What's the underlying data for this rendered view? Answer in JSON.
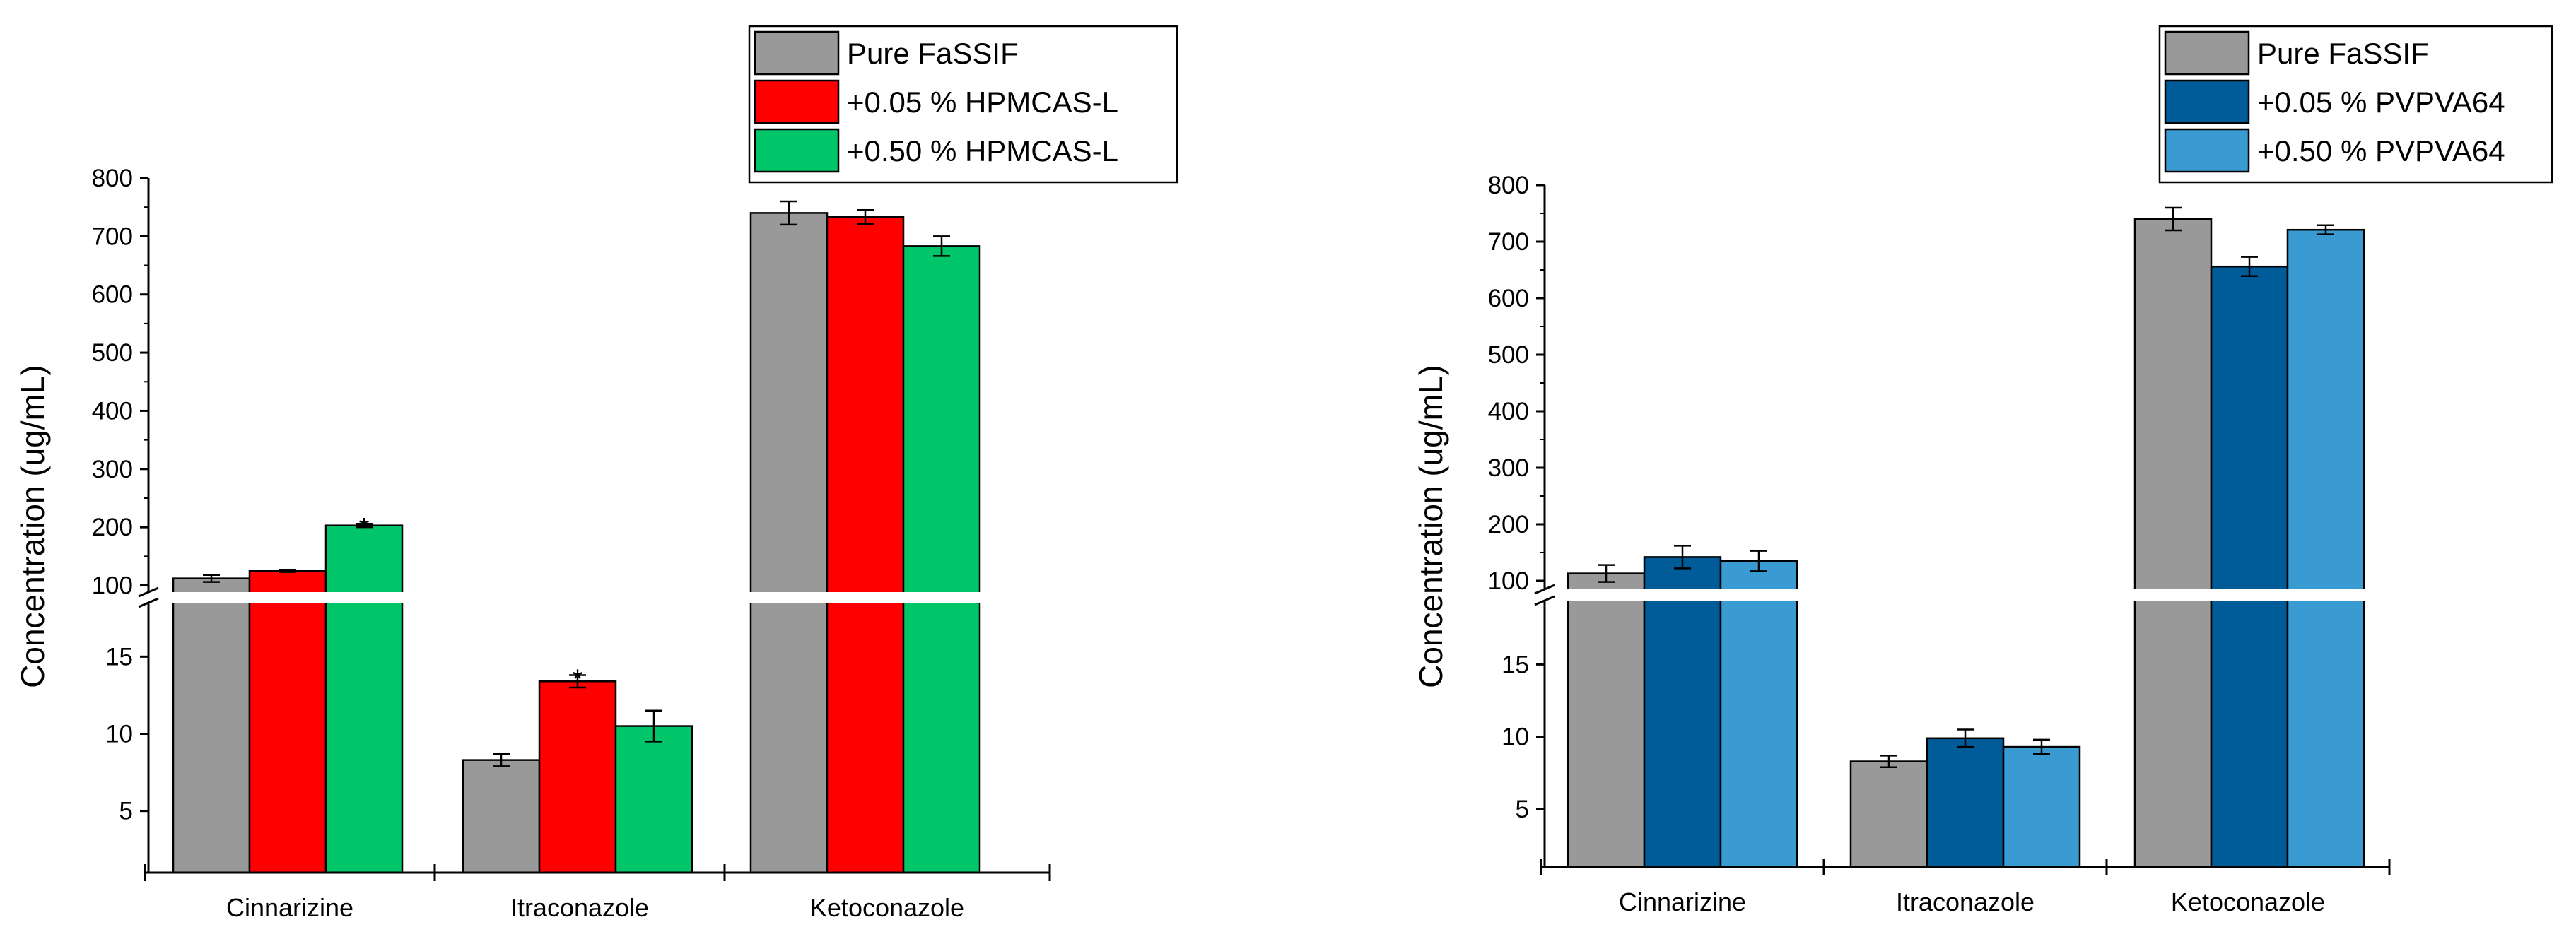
{
  "chart_data": [
    {
      "type": "bar",
      "id": "left",
      "ylabel": "Concentration (ug/mL)",
      "categories": [
        "Cinnarizine",
        "Itraconazole",
        "Ketoconazole"
      ],
      "axis_break": {
        "lower_range": [
          1,
          19
        ],
        "upper_range": [
          80,
          800
        ]
      },
      "lower_ticks": [
        "5",
        "10",
        "15"
      ],
      "upper_ticks": [
        "100",
        "200",
        "300",
        "400",
        "500",
        "600",
        "700",
        "800"
      ],
      "series": [
        {
          "name": "Pure FaSSIF",
          "color": "#999999",
          "values": [
            112,
            8.3,
            740
          ],
          "errors": [
            6,
            0.4,
            20
          ],
          "stars": [
            false,
            false,
            false
          ]
        },
        {
          "name": "+0.05 % HPMCAS-L",
          "color": "#ff0000",
          "values": [
            125,
            13.4,
            733
          ],
          "errors": [
            2,
            0.4,
            12
          ],
          "stars": [
            false,
            true,
            false
          ]
        },
        {
          "name": "+0.50 % HPMCAS-L",
          "color": "#00c569",
          "values": [
            203,
            10.5,
            683
          ],
          "errors": [
            3,
            1.0,
            17
          ],
          "stars": [
            true,
            false,
            false
          ]
        }
      ],
      "star_symbol": "*"
    },
    {
      "type": "bar",
      "id": "right",
      "ylabel": "Concentration (ug/mL)",
      "categories": [
        "Cinnarizine",
        "Itraconazole",
        "Ketoconazole"
      ],
      "axis_break": {
        "lower_range": [
          1,
          20
        ],
        "upper_range": [
          90,
          800
        ]
      },
      "lower_ticks": [
        "5",
        "10",
        "15"
      ],
      "upper_ticks": [
        "100",
        "200",
        "300",
        "400",
        "500",
        "600",
        "700",
        "800"
      ],
      "series": [
        {
          "name": "Pure FaSSIF",
          "color": "#999999",
          "values": [
            113,
            8.3,
            740
          ],
          "errors": [
            15,
            0.4,
            20
          ],
          "stars": [
            false,
            false,
            false
          ]
        },
        {
          "name": "+0.05 % PVPVA64",
          "color": "#005b99",
          "values": [
            142,
            9.9,
            656
          ],
          "errors": [
            20,
            0.6,
            17
          ],
          "stars": [
            false,
            false,
            false
          ]
        },
        {
          "name": "+0.50 % PVPVA64",
          "color": "#399bd2",
          "values": [
            135,
            9.3,
            721
          ],
          "errors": [
            18,
            0.5,
            8
          ],
          "stars": [
            false,
            false,
            false
          ]
        }
      ],
      "star_symbol": "*"
    }
  ]
}
